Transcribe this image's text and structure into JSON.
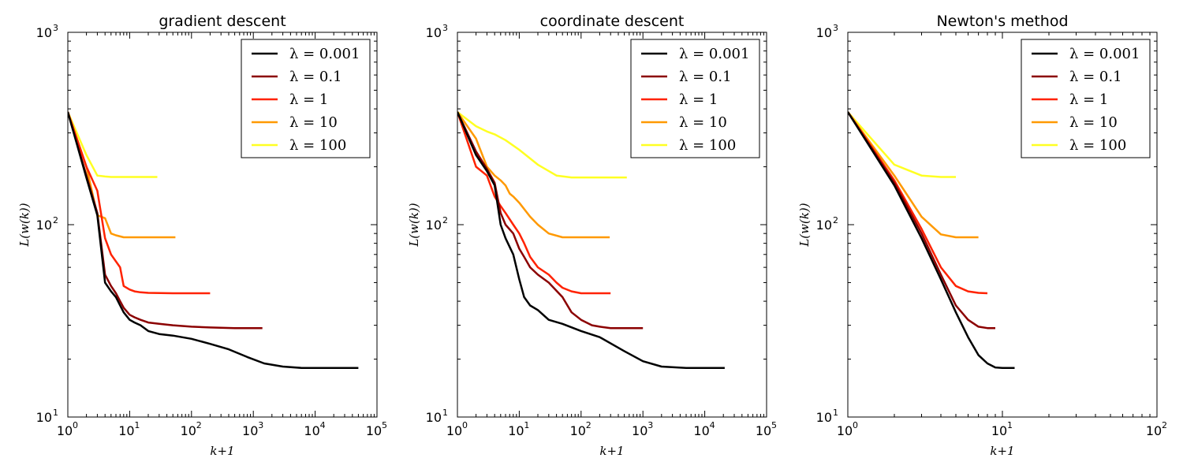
{
  "chart_data": [
    {
      "type": "line",
      "title": "gradient descent",
      "xlabel": "k+1",
      "ylabel": "L(w(k))",
      "xscale": "log",
      "yscale": "log",
      "xlim": [
        1,
        100000
      ],
      "ylim": [
        10,
        1000
      ],
      "xticks": [
        {
          "base": "10",
          "exp": "0"
        },
        {
          "base": "10",
          "exp": "1"
        },
        {
          "base": "10",
          "exp": "2"
        },
        {
          "base": "10",
          "exp": "3"
        },
        {
          "base": "10",
          "exp": "4"
        },
        {
          "base": "10",
          "exp": "5"
        }
      ],
      "yticks": [
        {
          "base": "10",
          "exp": "1"
        },
        {
          "base": "10",
          "exp": "2"
        },
        {
          "base": "10",
          "exp": "3"
        }
      ],
      "legend": "top-right",
      "series": [
        {
          "name": "λ = 0.001",
          "color": "#000000",
          "x": [
            1,
            2,
            3,
            4,
            5,
            6,
            7,
            8,
            10,
            12,
            15,
            20,
            30,
            50,
            100,
            200,
            400,
            800,
            1500,
            3000,
            6000,
            12000,
            50000
          ],
          "y": [
            385,
            175,
            112,
            50,
            45,
            42,
            38,
            35,
            32,
            31,
            30,
            28,
            27,
            26.5,
            25.5,
            24,
            22.5,
            20.5,
            19,
            18.3,
            18,
            18,
            18
          ]
        },
        {
          "name": "λ = 0.1",
          "color": "#8b0000",
          "x": [
            1,
            2,
            3,
            4,
            5,
            6,
            7,
            8,
            10,
            12,
            15,
            20,
            30,
            50,
            100,
            200,
            500,
            1400
          ],
          "y": [
            385,
            180,
            115,
            55,
            48,
            44,
            40,
            37,
            34,
            33,
            32,
            31,
            30.5,
            30,
            29.5,
            29.2,
            29,
            29
          ]
        },
        {
          "name": "λ = 1",
          "color": "#ff2200",
          "x": [
            1,
            2,
            3,
            4,
            5,
            7,
            8,
            10,
            12,
            15,
            20,
            50,
            200
          ],
          "y": [
            385,
            200,
            150,
            85,
            70,
            60,
            48,
            46,
            45,
            44.5,
            44.2,
            44,
            44
          ]
        },
        {
          "name": "λ = 10",
          "color": "#ff9900",
          "x": [
            1,
            2,
            3,
            4,
            5,
            6,
            8,
            10,
            20,
            55
          ],
          "y": [
            385,
            200,
            112,
            108,
            90,
            88,
            86,
            86,
            86,
            86
          ]
        },
        {
          "name": "λ = 100",
          "color": "#ffff22",
          "x": [
            1,
            2,
            3,
            4,
            5,
            10,
            28
          ],
          "y": [
            385,
            230,
            180,
            178,
            177,
            177,
            177
          ]
        }
      ]
    },
    {
      "type": "line",
      "title": "coordinate descent",
      "xlabel": "k+1",
      "ylabel": "L(w(k))",
      "xscale": "log",
      "yscale": "log",
      "xlim": [
        1,
        100000
      ],
      "ylim": [
        10,
        1000
      ],
      "xticks": [
        {
          "base": "10",
          "exp": "0"
        },
        {
          "base": "10",
          "exp": "1"
        },
        {
          "base": "10",
          "exp": "2"
        },
        {
          "base": "10",
          "exp": "3"
        },
        {
          "base": "10",
          "exp": "4"
        },
        {
          "base": "10",
          "exp": "5"
        }
      ],
      "yticks": [
        {
          "base": "10",
          "exp": "1"
        },
        {
          "base": "10",
          "exp": "2"
        },
        {
          "base": "10",
          "exp": "3"
        }
      ],
      "legend": "top-right",
      "series": [
        {
          "name": "λ = 0.001",
          "color": "#000000",
          "x": [
            1,
            2,
            3,
            4,
            5,
            6,
            8,
            10,
            12,
            15,
            20,
            30,
            50,
            100,
            200,
            500,
            1000,
            2000,
            5000,
            21000
          ],
          "y": [
            385,
            230,
            190,
            160,
            100,
            85,
            70,
            52,
            42,
            38,
            36,
            32,
            30.5,
            28,
            26,
            22,
            19.5,
            18.3,
            18,
            18
          ]
        },
        {
          "name": "λ = 0.1",
          "color": "#8b0000",
          "x": [
            1,
            2,
            3,
            4,
            5,
            6,
            8,
            10,
            12,
            15,
            20,
            30,
            50,
            70,
            100,
            150,
            200,
            300,
            500,
            1000
          ],
          "y": [
            385,
            240,
            195,
            165,
            115,
            100,
            90,
            75,
            68,
            60,
            55,
            50,
            42,
            35,
            32,
            30,
            29.5,
            29,
            29,
            29
          ]
        },
        {
          "name": "λ = 1",
          "color": "#ff2200",
          "x": [
            1,
            2,
            3,
            4,
            5,
            6,
            8,
            10,
            12,
            15,
            20,
            30,
            40,
            50,
            70,
            100,
            300
          ],
          "y": [
            385,
            200,
            180,
            140,
            125,
            115,
            100,
            90,
            80,
            68,
            60,
            55,
            50,
            47,
            45,
            44,
            44
          ]
        },
        {
          "name": "λ = 10",
          "color": "#ff9900",
          "x": [
            1,
            2,
            3,
            4,
            5,
            6,
            7,
            8,
            10,
            15,
            20,
            30,
            50,
            100,
            290
          ],
          "y": [
            385,
            280,
            200,
            180,
            170,
            160,
            145,
            140,
            130,
            110,
            100,
            90,
            86,
            86,
            86
          ]
        },
        {
          "name": "λ = 100",
          "color": "#ffff22",
          "x": [
            1,
            2,
            3,
            4,
            6,
            10,
            20,
            40,
            70,
            100,
            200,
            550
          ],
          "y": [
            385,
            325,
            305,
            295,
            275,
            245,
            205,
            180,
            176,
            176,
            176,
            176
          ]
        }
      ]
    },
    {
      "type": "line",
      "title": "Newton's method",
      "xlabel": "k+1",
      "ylabel": "L(w(k))",
      "xscale": "log",
      "yscale": "log",
      "xlim": [
        1,
        100
      ],
      "ylim": [
        10,
        1000
      ],
      "xticks": [
        {
          "base": "10",
          "exp": "0"
        },
        {
          "base": "10",
          "exp": "1"
        },
        {
          "base": "10",
          "exp": "2"
        }
      ],
      "yticks": [
        {
          "base": "10",
          "exp": "1"
        },
        {
          "base": "10",
          "exp": "2"
        },
        {
          "base": "10",
          "exp": "3"
        }
      ],
      "legend": "top-right",
      "series": [
        {
          "name": "λ = 0.001",
          "color": "#000000",
          "x": [
            1,
            2,
            3,
            4,
            5,
            6,
            7,
            8,
            9,
            10,
            12
          ],
          "y": [
            385,
            160,
            85,
            52,
            35,
            26,
            21,
            19,
            18.1,
            18,
            18
          ]
        },
        {
          "name": "λ = 0.1",
          "color": "#8b0000",
          "x": [
            1,
            2,
            3,
            4,
            5,
            6,
            7,
            8,
            9
          ],
          "y": [
            385,
            165,
            90,
            55,
            38,
            32,
            29.5,
            29,
            29
          ]
        },
        {
          "name": "λ = 1",
          "color": "#ff2200",
          "x": [
            1,
            2,
            3,
            4,
            5,
            6,
            7,
            8
          ],
          "y": [
            385,
            170,
            95,
            60,
            48,
            45,
            44.2,
            44
          ]
        },
        {
          "name": "λ = 10",
          "color": "#ff9900",
          "x": [
            1,
            2,
            3,
            4,
            5,
            6,
            7
          ],
          "y": [
            385,
            180,
            110,
            89,
            86,
            86,
            86
          ]
        },
        {
          "name": "λ = 100",
          "color": "#ffff22",
          "x": [
            1,
            2,
            3,
            4,
            5
          ],
          "y": [
            385,
            205,
            180,
            177,
            177
          ]
        }
      ]
    }
  ]
}
